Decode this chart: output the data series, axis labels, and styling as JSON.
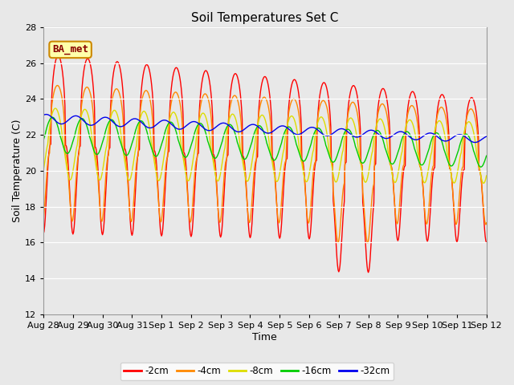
{
  "title": "Soil Temperatures Set C",
  "xlabel": "Time",
  "ylabel": "Soil Temperature (C)",
  "ylim": [
    12,
    28
  ],
  "yticks": [
    12,
    14,
    16,
    18,
    20,
    22,
    24,
    26,
    28
  ],
  "x_labels": [
    "Aug 28",
    "Aug 29",
    "Aug 30",
    "Aug 31",
    "Sep 1",
    "Sep 2",
    "Sep 3",
    "Sep 4",
    "Sep 5",
    "Sep 6",
    "Sep 7",
    "Sep 8",
    "Sep 9",
    "Sep 10",
    "Sep 11",
    "Sep 12"
  ],
  "colors": {
    "-2cm": "#ff0000",
    "-4cm": "#ff8800",
    "-8cm": "#dddd00",
    "-16cm": "#00cc00",
    "-32cm": "#0000ee"
  },
  "bg_color": "#e8e8e8",
  "fig_color": "#e8e8e8",
  "annotation_text": "BA_met",
  "annotation_bg": "#ffffaa",
  "annotation_border": "#cc8800",
  "grid_color": "#ffffff"
}
